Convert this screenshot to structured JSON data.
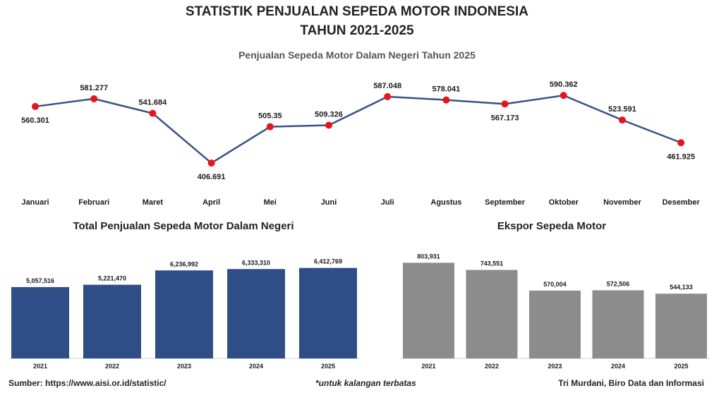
{
  "header": {
    "title_line1": "STATISTIK PENJUALAN SEPEDA MOTOR INDONESIA",
    "title_line2": "TAHUN 2021-2025",
    "subtitle": "Penjualan Sepeda Motor Dalam Negeri Tahun 2025"
  },
  "footer": {
    "source": "Sumber: https://www.aisi.or.id/statistic/",
    "note": "*untuk kalangan terbatas",
    "credit": "Tri Murdani, Biro Data dan Informasi"
  },
  "colors": {
    "line": "#3a5186",
    "marker": "#e8141b",
    "domestic_bar": "#2f4d87",
    "export_bar": "#8c8c8c"
  },
  "chart_data": [
    {
      "type": "line",
      "title": "Penjualan Sepeda Motor Dalam Negeri Tahun 2025",
      "categories": [
        "Januari",
        "Februari",
        "Maret",
        "April",
        "Mei",
        "Juni",
        "Juli",
        "Agustus",
        "September",
        "Oktober",
        "November",
        "Desember"
      ],
      "values": [
        560.301,
        581.277,
        541.684,
        406.691,
        505.35,
        509.326,
        587.048,
        578.041,
        567.173,
        590.362,
        523.591,
        461.925
      ],
      "labels": [
        "560.301",
        "581.277",
        "541.684",
        "406.691",
        "505.35",
        "509.326",
        "587.048",
        "578.041",
        "567.173",
        "590.362",
        "523.591",
        "461.925"
      ],
      "label_position": [
        "below",
        "above",
        "above",
        "below",
        "above",
        "above",
        "above",
        "above",
        "below",
        "above",
        "above",
        "below"
      ],
      "ylim": [
        380,
        610
      ],
      "grid": false
    },
    {
      "type": "bar",
      "title": "Total Penjualan Sepeda Motor Dalam Negeri",
      "categories": [
        "2021",
        "2022",
        "2023",
        "2024",
        "2025"
      ],
      "values": [
        5057516,
        5221470,
        6236992,
        6333310,
        6412769
      ],
      "labels": [
        "5,057,516",
        "5,221,470",
        "6,236,992",
        "6,333,310",
        "6,412,769"
      ],
      "ylim": [
        0,
        7000000
      ]
    },
    {
      "type": "bar",
      "title": "Ekspor Sepeda Motor",
      "categories": [
        "2021",
        "2022",
        "2023",
        "2024",
        "2025"
      ],
      "values": [
        803931,
        743551,
        570004,
        572506,
        544133
      ],
      "labels": [
        "803,931",
        "743,551",
        "570,004",
        "572,506",
        "544,133"
      ],
      "ylim": [
        0,
        830000
      ]
    }
  ]
}
